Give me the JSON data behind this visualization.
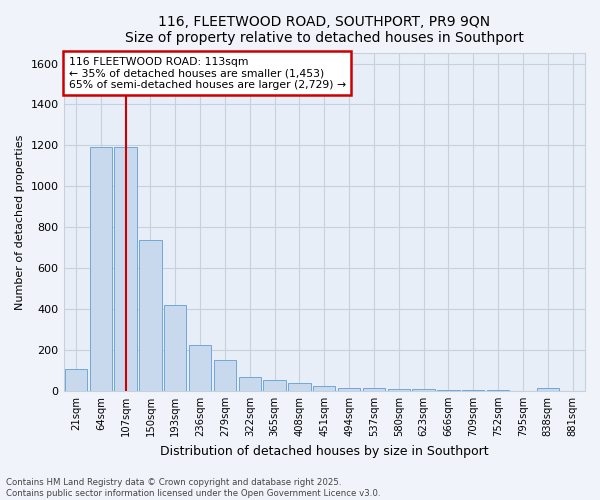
{
  "title": "116, FLEETWOOD ROAD, SOUTHPORT, PR9 9QN",
  "subtitle": "Size of property relative to detached houses in Southport",
  "xlabel": "Distribution of detached houses by size in Southport",
  "ylabel": "Number of detached properties",
  "categories": [
    "21sqm",
    "64sqm",
    "107sqm",
    "150sqm",
    "193sqm",
    "236sqm",
    "279sqm",
    "322sqm",
    "365sqm",
    "408sqm",
    "451sqm",
    "494sqm",
    "537sqm",
    "580sqm",
    "623sqm",
    "666sqm",
    "709sqm",
    "752sqm",
    "795sqm",
    "838sqm",
    "881sqm"
  ],
  "values": [
    105,
    1190,
    1190,
    740,
    420,
    225,
    150,
    70,
    55,
    40,
    25,
    15,
    12,
    10,
    8,
    5,
    4,
    3,
    0,
    15,
    0
  ],
  "bar_color": "#c8d9ee",
  "bar_edge_color": "#6fa8d8",
  "vline_x": 2.0,
  "vline_color": "#cc0000",
  "annotation_title": "116 FLEETWOOD ROAD: 113sqm",
  "annotation_line1": "← 35% of detached houses are smaller (1,453)",
  "annotation_line2": "65% of semi-detached houses are larger (2,729) →",
  "annotation_box_color": "#cc0000",
  "ylim": [
    0,
    1650
  ],
  "yticks": [
    0,
    200,
    400,
    600,
    800,
    1000,
    1200,
    1400,
    1600
  ],
  "footer_line1": "Contains HM Land Registry data © Crown copyright and database right 2025.",
  "footer_line2": "Contains public sector information licensed under the Open Government Licence v3.0.",
  "bg_color": "#f0f4fa",
  "plot_bg_color": "#e8eef8",
  "grid_color": "#c8d0dc"
}
